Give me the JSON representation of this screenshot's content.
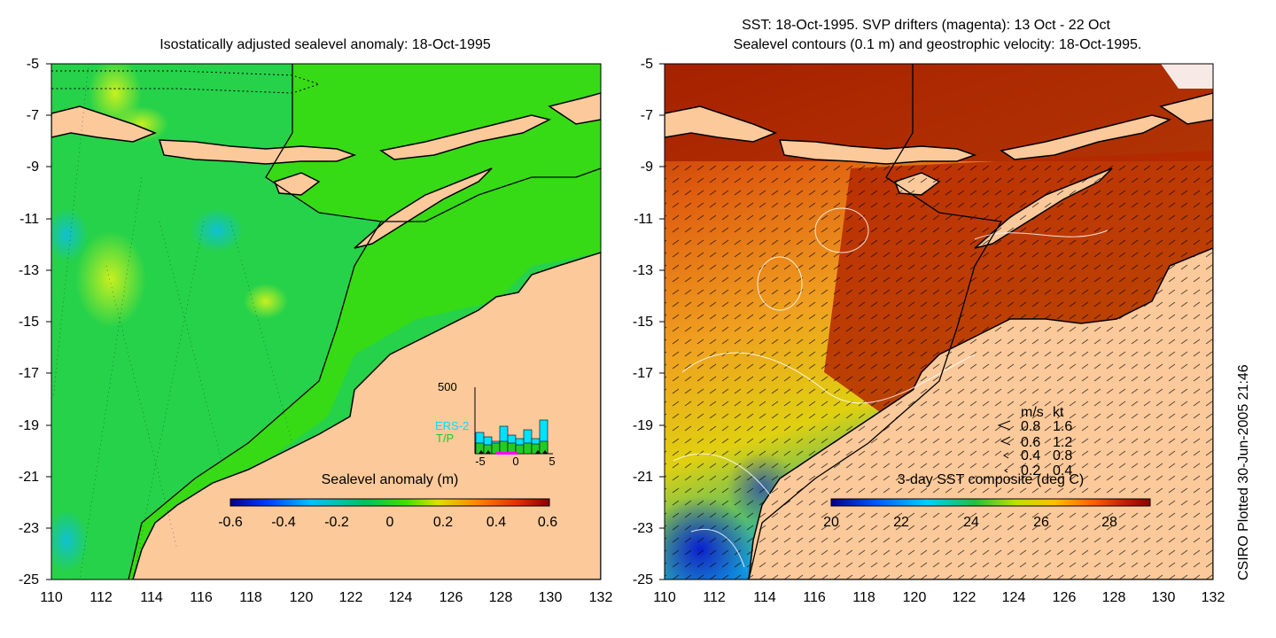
{
  "left_panel": {
    "title": "Isostatically adjusted sealevel anomaly: 18-Oct-1995",
    "colorbar": {
      "label": "Sealevel anomaly (m)",
      "ticks": [
        "-0.6",
        "-0.4",
        "-0.2",
        "0",
        "0.2",
        "0.4",
        "0.6"
      ],
      "colors": [
        "#00008b",
        "#0040ff",
        "#00c0ff",
        "#00c060",
        "#40e000",
        "#e0e000",
        "#ff8000",
        "#e03000",
        "#8b0000"
      ]
    },
    "inset": {
      "y_label": "500",
      "series_ers2": "ERS-2",
      "series_tp": "T/P",
      "x_labels": [
        "-5",
        "0",
        "5"
      ],
      "ers2_color": "#00e0ff",
      "tp_color": "#22cc22"
    }
  },
  "right_panel": {
    "title_line1": "SST: 18-Oct-1995. SVP drifters (magenta): 13 Oct - 22 Oct",
    "title_line2": "Sealevel contours (0.1 m) and geostrophic velocity: 18-Oct-1995.",
    "colorbar": {
      "label": "3-day SST composite (deg C)",
      "ticks": [
        "20",
        "22",
        "24",
        "26",
        "28"
      ],
      "colors": [
        "#00008b",
        "#0060ff",
        "#00d0ff",
        "#20c040",
        "#c0e000",
        "#ffc000",
        "#ff6000",
        "#c02000",
        "#8b0000"
      ]
    },
    "velocity_legend": {
      "header_ms": "m/s",
      "header_kt": "kt",
      "rows": [
        {
          "ms": "0.8",
          "kt": "1.6"
        },
        {
          "ms": "0.6",
          "kt": "1.2"
        },
        {
          "ms": "0.4",
          "kt": "0.8"
        },
        {
          "ms": "0.2",
          "kt": "0.4"
        }
      ]
    }
  },
  "axes": {
    "y_ticks": [
      "-5",
      "-7",
      "-9",
      "-11",
      "-13",
      "-15",
      "-17",
      "-19",
      "-21",
      "-23",
      "-25"
    ],
    "x_ticks": [
      "110",
      "112",
      "114",
      "116",
      "118",
      "120",
      "122",
      "124",
      "126",
      "128",
      "130",
      "132"
    ]
  },
  "credit": "CSIRO Plotted 30-Jun-2005 21:46",
  "colors": {
    "land": "#fcc99a",
    "ocean_left": "#20d040",
    "shelf_left": "#33dd00"
  }
}
